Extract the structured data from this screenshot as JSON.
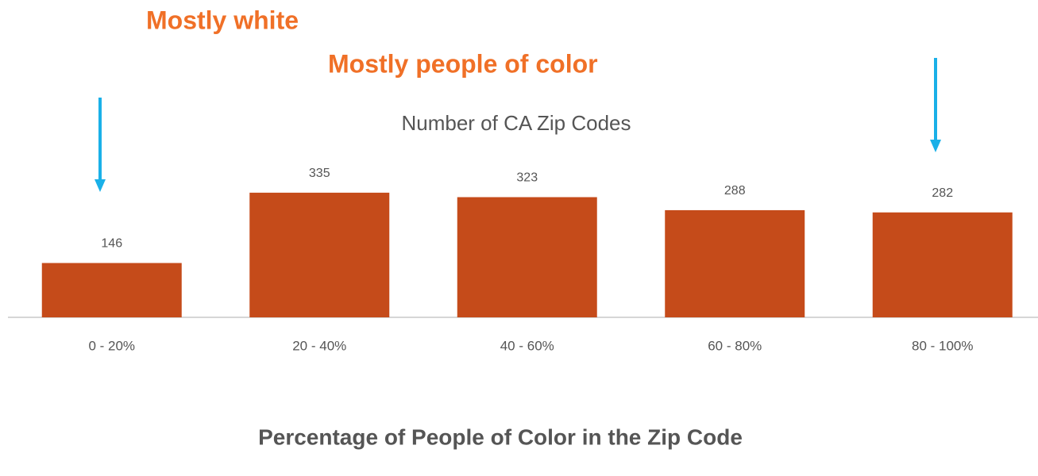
{
  "chart_data": {
    "type": "bar",
    "title": "Number of CA Zip Codes",
    "x_label": "Percentage of People of Color in the Zip Code",
    "annotations": [
      "Mostly white",
      "Mostly people of color"
    ],
    "categories": [
      "0 - 20%",
      "20 - 40%",
      "40 - 60%",
      "60 - 80%",
      "80 - 100%"
    ],
    "values": [
      146,
      335,
      323,
      288,
      282
    ],
    "color": "#c54b1a"
  }
}
